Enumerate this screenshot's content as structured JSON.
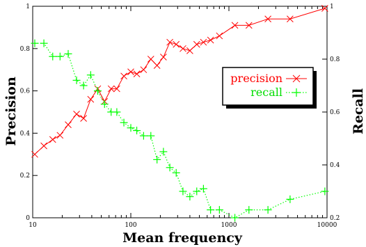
{
  "chart_data": {
    "type": "line",
    "xlabel": "Mean frequency",
    "ylabel": "Precision",
    "y2label": "Recall",
    "xscale": "log",
    "xlim": [
      10,
      10000
    ],
    "ylim": [
      0,
      1
    ],
    "y2lim": [
      0.2,
      1
    ],
    "x_ticks": [
      10,
      100,
      1000,
      10000
    ],
    "x_tick_labels": [
      "10",
      "100",
      "1000",
      "10000"
    ],
    "y_ticks": [
      0,
      0.2,
      0.4,
      0.6,
      0.8,
      1
    ],
    "y_tick_labels": [
      "0",
      "0.2",
      "0.4",
      "0.6",
      "0.8",
      "1"
    ],
    "y2_ticks": [
      0.2,
      0.4,
      0.6,
      0.8,
      1
    ],
    "y2_tick_labels": [
      "0.2",
      "0.4",
      "0.6",
      "0.8",
      "1"
    ],
    "grid": false,
    "legend": "right",
    "series": [
      {
        "name": "precision",
        "axis": "left",
        "color": "#ff0000",
        "line": "solid",
        "marker": "x",
        "x": [
          10.5,
          13,
          16,
          19,
          23,
          28,
          33,
          39,
          46,
          54,
          63,
          72,
          85,
          100,
          115,
          135,
          160,
          185,
          215,
          250,
          290,
          340,
          400,
          470,
          550,
          650,
          800,
          1150,
          1600,
          2500,
          4200,
          9500
        ],
        "y": [
          0.3,
          0.34,
          0.37,
          0.39,
          0.44,
          0.49,
          0.47,
          0.56,
          0.61,
          0.55,
          0.61,
          0.61,
          0.67,
          0.69,
          0.68,
          0.7,
          0.75,
          0.72,
          0.76,
          0.83,
          0.82,
          0.8,
          0.79,
          0.82,
          0.83,
          0.84,
          0.86,
          0.91,
          0.91,
          0.94,
          0.94,
          0.99
        ]
      },
      {
        "name": "recall",
        "axis": "right",
        "color": "#00ff00",
        "line": "dotted",
        "marker": "+",
        "x": [
          10.5,
          13,
          16,
          19,
          23,
          28,
          33,
          39,
          46,
          54,
          63,
          72,
          85,
          100,
          115,
          135,
          160,
          185,
          215,
          250,
          290,
          340,
          400,
          470,
          550,
          650,
          800,
          1150,
          1600,
          2500,
          4200,
          9500
        ],
        "y": [
          0.86,
          0.86,
          0.81,
          0.81,
          0.82,
          0.72,
          0.7,
          0.74,
          0.68,
          0.63,
          0.6,
          0.6,
          0.56,
          0.54,
          0.53,
          0.51,
          0.51,
          0.42,
          0.45,
          0.39,
          0.37,
          0.3,
          0.28,
          0.3,
          0.31,
          0.23,
          0.23,
          0.2,
          0.23,
          0.23,
          0.27,
          0.3
        ]
      }
    ]
  }
}
